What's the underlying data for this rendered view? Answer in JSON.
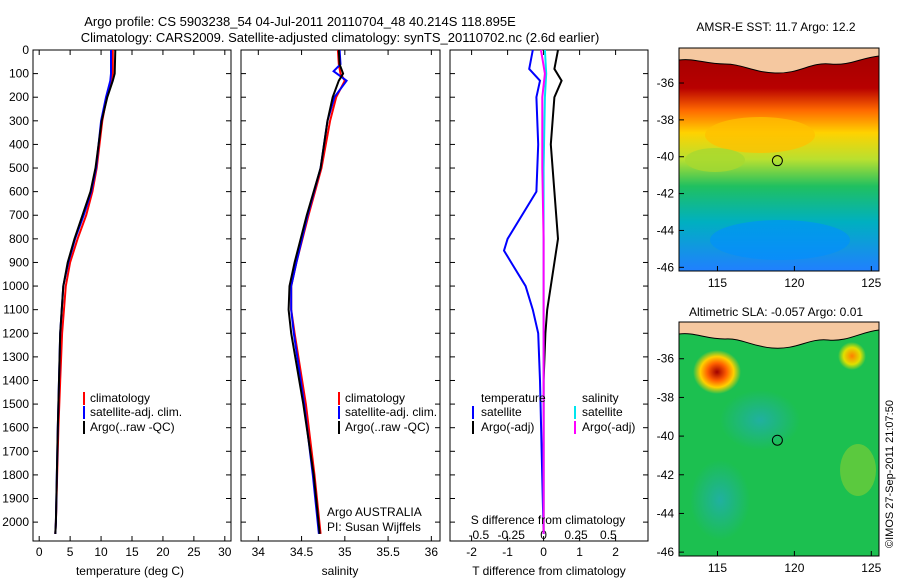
{
  "header": {
    "line1": "Argo profile: CS 5903238_54 04-Jul-2011 20110704_48 40.214S 118.895E",
    "line2": "Climatology: CARS2009. Satellite-adjusted climatology: synTS_20110702.nc (2.6d earlier)"
  },
  "colors": {
    "climatology": "#ff0000",
    "satellite": "#0000ff",
    "argo": "#000000",
    "salinity_satellite": "#00e5ee",
    "salinity_argo": "#ff00ff"
  },
  "chart_data": [
    {
      "type": "line",
      "xlabel": "temperature (deg C)",
      "ylabel": "",
      "xlim": [
        -1,
        31
      ],
      "ylim": [
        2080,
        0
      ],
      "xticks": [
        "0",
        "5",
        "10",
        "15",
        "20",
        "25",
        "30"
      ],
      "xtick_values": [
        0,
        5,
        10,
        15,
        20,
        25,
        30
      ],
      "yticks": [
        "0",
        "100",
        "200",
        "300",
        "400",
        "500",
        "600",
        "700",
        "800",
        "900",
        "1000",
        "1100",
        "1200",
        "1300",
        "1400",
        "1500",
        "1600",
        "1700",
        "1800",
        "1900",
        "2000"
      ],
      "legend": [
        "climatology",
        "satellite-adj. clim.",
        "Argo(..raw -QC)"
      ],
      "series": [
        {
          "name": "climatology",
          "color": "#ff0000",
          "depth": [
            0,
            100,
            130,
            200,
            300,
            500,
            600,
            700,
            800,
            900,
            1000,
            1200,
            1400,
            1600,
            2000,
            2050
          ],
          "values": [
            11.9,
            11.9,
            11.6,
            10.9,
            10.2,
            9.3,
            8.6,
            7.6,
            6.2,
            5.0,
            4.3,
            3.7,
            3.4,
            3.1,
            2.7,
            2.6
          ]
        },
        {
          "name": "satellite-adj. clim.",
          "color": "#0000ff",
          "depth": [
            0,
            100,
            130,
            200,
            300,
            500,
            600,
            700,
            800,
            900,
            1000,
            1200,
            1400,
            1600,
            2000,
            2050
          ],
          "values": [
            11.6,
            11.6,
            11.5,
            10.8,
            10.0,
            9.2,
            8.4,
            7.2,
            5.8,
            4.7,
            3.9,
            3.4,
            3.2,
            3.0,
            2.7,
            2.6
          ]
        },
        {
          "name": "Argo(..raw -QC)",
          "color": "#000000",
          "depth": [
            0,
            100,
            130,
            200,
            300,
            500,
            600,
            700,
            800,
            900,
            1000,
            1200,
            1400,
            1600,
            2000,
            2050
          ],
          "values": [
            12.3,
            12.2,
            11.9,
            11.0,
            10.1,
            9.1,
            8.3,
            7.0,
            5.7,
            4.6,
            3.9,
            3.4,
            3.2,
            3.0,
            2.7,
            2.6
          ]
        }
      ]
    },
    {
      "type": "line",
      "xlabel": "salinity",
      "ylabel": "",
      "xlim": [
        33.8,
        36.1
      ],
      "ylim": [
        2080,
        0
      ],
      "xticks": [
        "34",
        "34.5",
        "35",
        "35.5",
        "36"
      ],
      "xtick_values": [
        34,
        34.5,
        35,
        35.5,
        36
      ],
      "legend": [
        "climatology",
        "satellite-adj. clim.",
        "Argo(..raw -QC)"
      ],
      "annotation": [
        "Argo AUSTRALIA",
        "PI: Susan Wijffels"
      ],
      "series": [
        {
          "name": "climatology",
          "color": "#ff0000",
          "depth": [
            0,
            60,
            100,
            130,
            200,
            300,
            500,
            700,
            900,
            1000,
            1100,
            1200,
            1500,
            1800,
            2050
          ],
          "values": [
            34.92,
            34.93,
            34.95,
            35.0,
            34.9,
            34.83,
            34.73,
            34.58,
            34.44,
            34.38,
            34.38,
            34.42,
            34.55,
            34.65,
            34.72
          ]
        },
        {
          "name": "satellite-adj. clim.",
          "color": "#0000ff",
          "depth": [
            0,
            60,
            90,
            130,
            200,
            300,
            500,
            700,
            900,
            1000,
            1100,
            1200,
            1500,
            1800,
            2050
          ],
          "values": [
            34.94,
            34.95,
            34.87,
            35.02,
            34.88,
            34.8,
            34.72,
            34.57,
            34.44,
            34.38,
            34.38,
            34.41,
            34.53,
            34.63,
            34.7
          ]
        },
        {
          "name": "Argo(..raw -QC)",
          "color": "#000000",
          "depth": [
            0,
            60,
            100,
            130,
            200,
            300,
            500,
            700,
            900,
            1000,
            1100,
            1200,
            1500,
            1800,
            2050
          ],
          "values": [
            34.93,
            34.94,
            34.98,
            34.93,
            34.86,
            34.8,
            34.72,
            34.56,
            34.42,
            34.36,
            34.35,
            34.38,
            34.52,
            34.64,
            34.71
          ]
        }
      ]
    },
    {
      "type": "line",
      "top_axis_label": "S difference from climatology",
      "top_ticks": [
        "-0.5",
        "-0.25",
        "0",
        "0.25",
        "0.5"
      ],
      "top_tick_values": [
        -0.5,
        -0.25,
        0,
        0.25,
        0.5
      ],
      "xlabel": "T difference from climatology",
      "xlim": [
        -2.6,
        2.9
      ],
      "ylim": [
        2080,
        0
      ],
      "xticks": [
        "-2",
        "-1",
        "0",
        "1",
        "2"
      ],
      "xtick_values": [
        -2,
        -1,
        0,
        1,
        2
      ],
      "legend_left_title": "temperature",
      "legend_right_title": "salinity",
      "legend_left": [
        "satellite",
        "Argo(-adj)"
      ],
      "legend_right": [
        "satellite",
        "Argo(-adj)"
      ],
      "series": [
        {
          "name": "T satellite",
          "color": "#0000ff",
          "depth": [
            0,
            80,
            130,
            200,
            400,
            600,
            800,
            850,
            900,
            1000,
            1100,
            1200,
            1400,
            2050
          ],
          "values": [
            -0.3,
            -0.4,
            -0.1,
            -0.2,
            -0.15,
            -0.2,
            -1.0,
            -1.1,
            -0.9,
            -0.5,
            -0.3,
            -0.15,
            -0.1,
            0.0
          ]
        },
        {
          "name": "T Argo(-adj)",
          "color": "#000000",
          "depth": [
            0,
            80,
            130,
            200,
            400,
            600,
            800,
            900,
            1000,
            1100,
            1200,
            1400,
            2050
          ],
          "values": [
            0.4,
            0.3,
            0.5,
            0.3,
            0.2,
            0.3,
            0.4,
            0.3,
            0.2,
            0.1,
            0.05,
            0.0,
            0.0
          ]
        },
        {
          "name": "S satellite",
          "color": "#00e5ee",
          "depth": [
            0,
            100,
            200,
            500,
            800,
            1000,
            1200,
            2050
          ],
          "values": [
            0.01,
            0.02,
            0.01,
            0.0,
            0.0,
            0.0,
            0.0,
            0.0
          ]
        },
        {
          "name": "S Argo(-adj)",
          "color": "#ff00ff",
          "depth": [
            0,
            100,
            200,
            500,
            800,
            1000,
            1200,
            2050
          ],
          "values": [
            -0.02,
            0.01,
            -0.01,
            -0.01,
            0.0,
            0.0,
            0.0,
            0.0
          ]
        }
      ]
    },
    {
      "type": "heatmap",
      "title": "AMSR-E SST: 11.7 Argo: 12.2",
      "x_ticks": [
        "115",
        "120",
        "125"
      ],
      "x_tick_values": [
        115,
        120,
        125
      ],
      "y_ticks": [
        "-36",
        "-38",
        "-40",
        "-42",
        "-44",
        "-46"
      ],
      "y_tick_values": [
        -36,
        -38,
        -40,
        -42,
        -44,
        -46
      ],
      "xlim": [
        112.5,
        125.5
      ],
      "ylim": [
        -46.2,
        -34.1
      ],
      "argo_position": {
        "lon": 118.895,
        "lat": -40.214
      }
    },
    {
      "type": "heatmap",
      "title": "Altimetric SLA: -0.057 Argo: 0.01",
      "x_ticks": [
        "115",
        "120",
        "125"
      ],
      "x_tick_values": [
        115,
        120,
        125
      ],
      "y_ticks": [
        "-36",
        "-38",
        "-40",
        "-42",
        "-44",
        "-46"
      ],
      "y_tick_values": [
        -36,
        -38,
        -40,
        -42,
        -44,
        -46
      ],
      "xlim": [
        112.5,
        125.5
      ],
      "ylim": [
        -46.2,
        -34.1
      ],
      "argo_position": {
        "lon": 118.895,
        "lat": -40.214
      }
    }
  ],
  "credit": "©IMOS 27-Sep-2011 21:07:50"
}
